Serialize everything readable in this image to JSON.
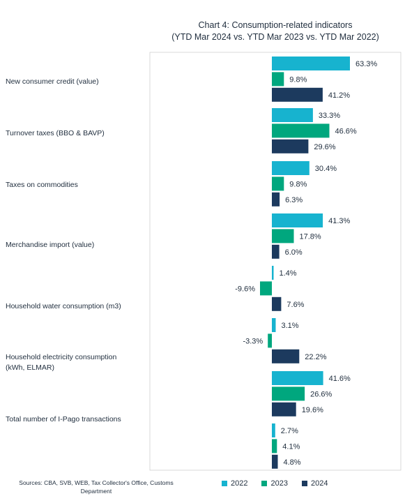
{
  "chart_data": {
    "type": "bar",
    "orientation": "horizontal",
    "title": "Chart 4: Consumption-related indicators",
    "subtitle": "(YTD Mar 2024 vs. YTD Mar 2023 vs. YTD Mar 2022)",
    "categories": [
      "New consumer credit (value)",
      "Turnover taxes (BBO & BAVP)",
      "Taxes on commodities",
      "Merchandise import (value)",
      "Household water consumption (m3)",
      "Household electricity consumption (kWh, ELMAR)",
      "Total number of I-Pago transactions",
      ""
    ],
    "series": [
      {
        "name": "2022",
        "color": "#17b3cf",
        "values": [
          63.3,
          33.3,
          30.4,
          41.3,
          1.4,
          3.1,
          41.6,
          2.7
        ]
      },
      {
        "name": "2023",
        "color": "#00a77e",
        "values": [
          9.8,
          46.6,
          9.8,
          17.8,
          -9.6,
          -3.3,
          26.6,
          4.1
        ]
      },
      {
        "name": "2024",
        "color": "#1c3a5e",
        "values": [
          41.2,
          29.6,
          6.3,
          6.0,
          7.6,
          22.2,
          19.6,
          4.8
        ]
      }
    ],
    "data_labels": [
      [
        "63.3%",
        "9.8%",
        "41.2%"
      ],
      [
        "33.3%",
        "46.6%",
        "29.6%"
      ],
      [
        "30.4%",
        "9.8%",
        "6.3%"
      ],
      [
        "41.3%",
        "17.8%",
        "6.0%"
      ],
      [
        "1.4%",
        "-9.6%",
        "7.6%"
      ],
      [
        "3.1%",
        "-3.3%",
        "22.2%"
      ],
      [
        "41.6%",
        "26.6%",
        "19.6%"
      ],
      [
        "2.7%",
        "4.1%",
        "4.8%"
      ]
    ],
    "legend_position": "bottom",
    "grid": false
  },
  "labels": {
    "cat0": "New consumer credit (value)",
    "cat1": "Turnover taxes (BBO & BAVP)",
    "cat2": "Taxes on commodities",
    "cat3": "Merchandise import (value)",
    "cat4": "Household water consumption (m3)",
    "cat5_line1": "Household electricity consumption",
    "cat5_line2": "(kWh, ELMAR)",
    "cat6": "Total number of I-Pago transactions"
  },
  "source_line1": "Sources: CBA, SVB, WEB, Tax Collector's Office, Customs",
  "source_line2": "Department",
  "legend": [
    "2022",
    "2023",
    "2024"
  ]
}
